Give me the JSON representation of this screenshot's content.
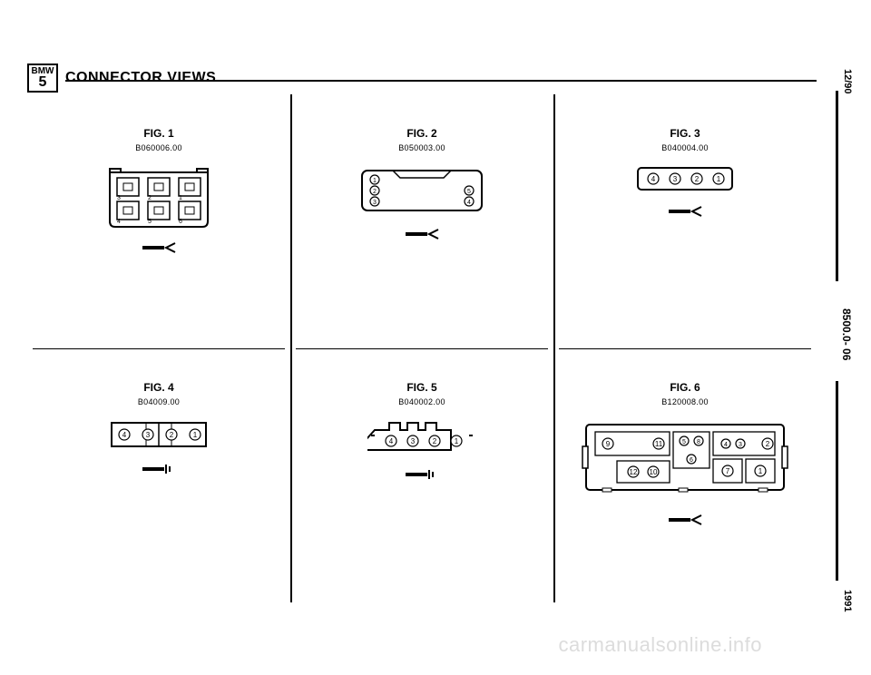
{
  "logo": {
    "brand": "BMW",
    "series": "5"
  },
  "title": "CONNECTOR VIEWS",
  "side": {
    "top": "12/90",
    "mid": "8500.0- 06",
    "bot": "1991"
  },
  "watermark": "carmanualsonline.info",
  "figures": [
    {
      "label": "FIG. 1",
      "part": "B060006.00",
      "type": "block-6",
      "pins": [
        3,
        2,
        1,
        4,
        5,
        6
      ],
      "arrow": "in",
      "stroke": "#000000"
    },
    {
      "label": "FIG. 2",
      "part": "B050003.00",
      "type": "rect-5",
      "pins_left": [
        1,
        2,
        3
      ],
      "pins_right": [
        5,
        4
      ],
      "arrow": "in",
      "stroke": "#000000"
    },
    {
      "label": "FIG. 3",
      "part": "B040004.00",
      "type": "inline-4",
      "pins": [
        4,
        3,
        2,
        1
      ],
      "arrow": "in",
      "stroke": "#000000"
    },
    {
      "label": "FIG. 4",
      "part": "B04009.00",
      "type": "inline-4-split",
      "pins": [
        4,
        3,
        2,
        1
      ],
      "arrow": "out",
      "stroke": "#000000"
    },
    {
      "label": "FIG. 5",
      "part": "B040002.00",
      "type": "tabbed-4",
      "pins": [
        4,
        3,
        2,
        1
      ],
      "arrow": "out",
      "stroke": "#000000"
    },
    {
      "label": "FIG. 6",
      "part": "B120008.00",
      "type": "block-12",
      "arrow": "in",
      "stroke": "#000000"
    }
  ]
}
